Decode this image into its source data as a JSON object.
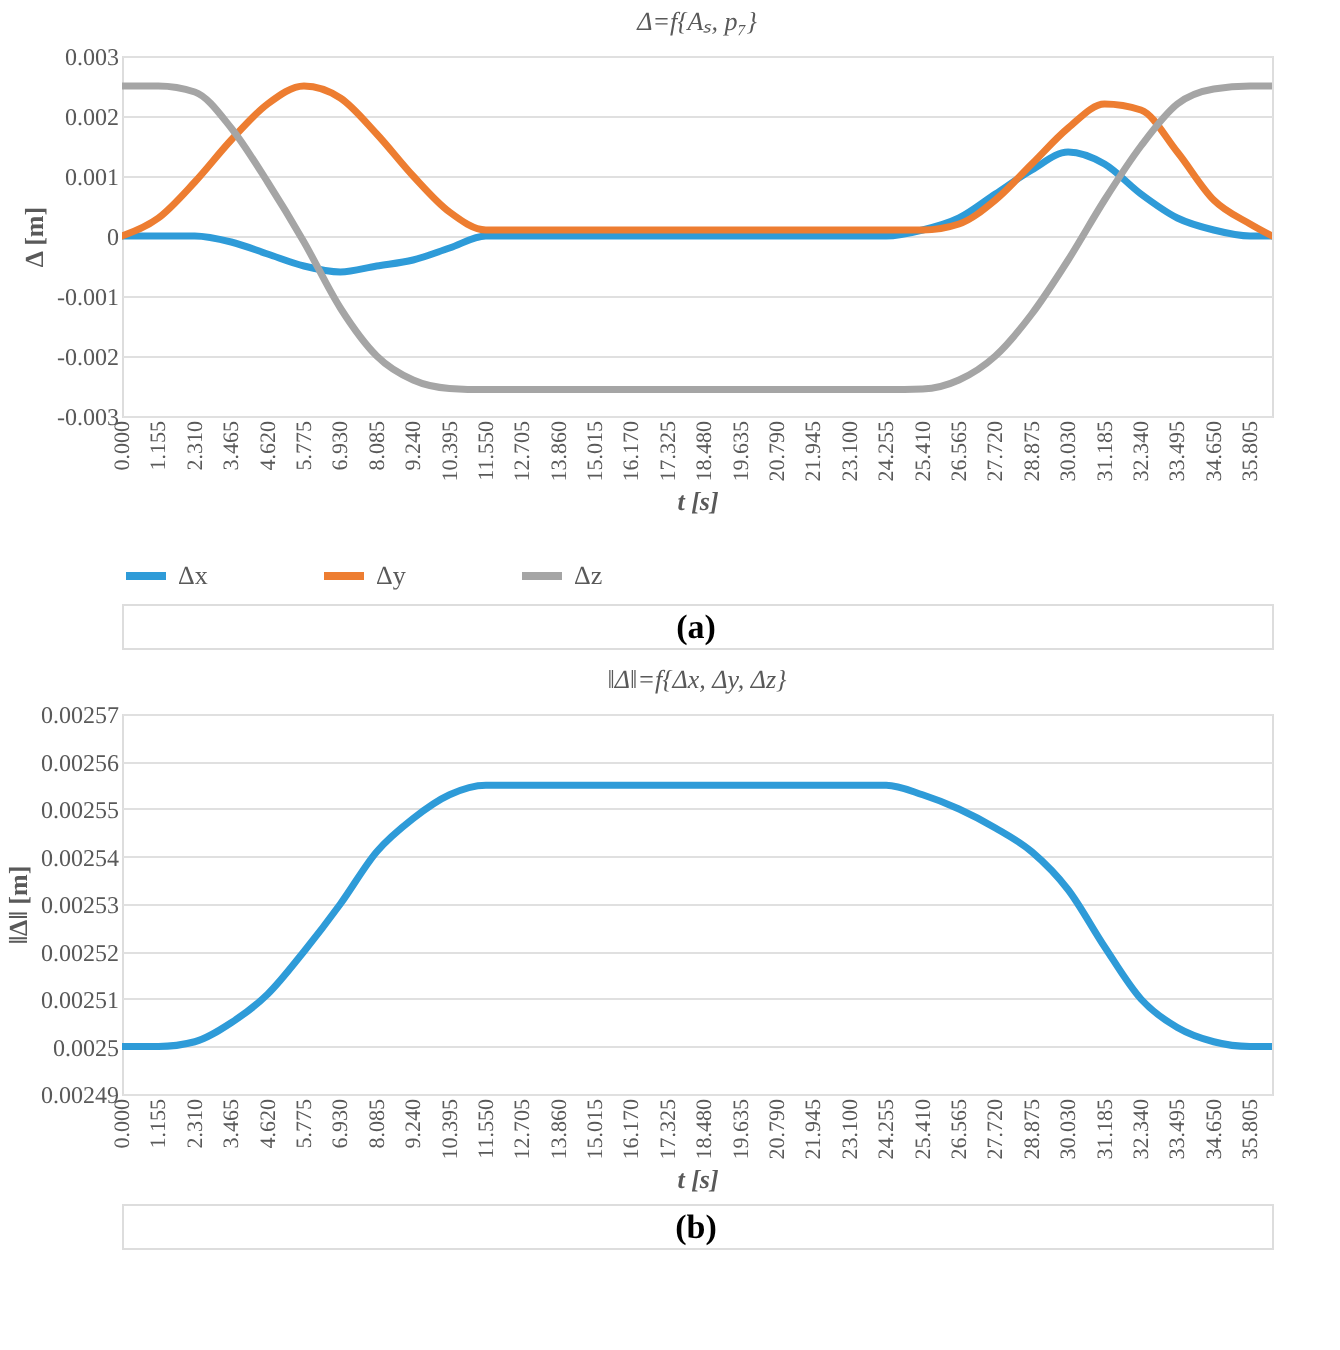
{
  "chart_data": [
    {
      "type": "line",
      "title": "Δ=f{Aₛ, p₇}",
      "xlabel": "t [s]",
      "ylabel": "Δ [m]",
      "grid": "y",
      "legend": "bottom",
      "marker": "none",
      "line_style": "solid",
      "x": [
        0,
        1.155,
        2.31,
        3.465,
        4.62,
        5.775,
        6.93,
        8.085,
        9.24,
        10.395,
        11.55,
        12.705,
        13.86,
        15.015,
        16.17,
        17.325,
        18.48,
        19.635,
        20.79,
        21.945,
        23.1,
        24.255,
        25.41,
        26.565,
        27.72,
        28.875,
        30.03,
        31.185,
        32.34,
        33.495,
        34.65,
        35.805,
        36.5
      ],
      "xlim": [
        0,
        36.5
      ],
      "xticks": [
        {
          "value": 0,
          "label": "0.000"
        },
        {
          "value": 1.155,
          "label": "1.155"
        },
        {
          "value": 2.31,
          "label": "2.310"
        },
        {
          "value": 3.465,
          "label": "3.465"
        },
        {
          "value": 4.62,
          "label": "4.620"
        },
        {
          "value": 5.775,
          "label": "5.775"
        },
        {
          "value": 6.93,
          "label": "6.930"
        },
        {
          "value": 8.085,
          "label": "8.085"
        },
        {
          "value": 9.24,
          "label": "9.240"
        },
        {
          "value": 10.395,
          "label": "10.395"
        },
        {
          "value": 11.55,
          "label": "11.550"
        },
        {
          "value": 12.705,
          "label": "12.705"
        },
        {
          "value": 13.86,
          "label": "13.860"
        },
        {
          "value": 15.015,
          "label": "15.015"
        },
        {
          "value": 16.17,
          "label": "16.170"
        },
        {
          "value": 17.325,
          "label": "17.325"
        },
        {
          "value": 18.48,
          "label": "18.480"
        },
        {
          "value": 19.635,
          "label": "19.635"
        },
        {
          "value": 20.79,
          "label": "20.790"
        },
        {
          "value": 21.945,
          "label": "21.945"
        },
        {
          "value": 23.1,
          "label": "23.100"
        },
        {
          "value": 24.255,
          "label": "24.255"
        },
        {
          "value": 25.41,
          "label": "25.410"
        },
        {
          "value": 26.565,
          "label": "26.565"
        },
        {
          "value": 27.72,
          "label": "27.720"
        },
        {
          "value": 28.875,
          "label": "28.875"
        },
        {
          "value": 30.03,
          "label": "30.030"
        },
        {
          "value": 31.185,
          "label": "31.185"
        },
        {
          "value": 32.34,
          "label": "32.340"
        },
        {
          "value": 33.495,
          "label": "33.495"
        },
        {
          "value": 34.65,
          "label": "34.650"
        },
        {
          "value": 35.805,
          "label": "35.805"
        }
      ],
      "ylim": [
        -0.003,
        0.003
      ],
      "yticks": [
        -0.003,
        -0.002,
        -0.001,
        0,
        0.001,
        0.002,
        0.003
      ],
      "series": [
        {
          "name": "Δx",
          "color": "#2e9bd8",
          "values": [
            0,
            0,
            0,
            -0.0001,
            -0.0003,
            -0.0005,
            -0.0006,
            -0.0005,
            -0.0004,
            -0.0002,
            0,
            0,
            0,
            0,
            0,
            0,
            0,
            0,
            0,
            0,
            0,
            0,
            0.0001,
            0.0003,
            0.0007,
            0.0011,
            0.0014,
            0.0012,
            0.0007,
            0.0003,
            0.0001,
            0,
            0
          ]
        },
        {
          "name": "Δy",
          "color": "#ed7d31",
          "values": [
            0,
            0.0003,
            0.0009,
            0.0016,
            0.0022,
            0.0025,
            0.0023,
            0.0017,
            0.001,
            0.0004,
            0.0001,
            0.0001,
            0.0001,
            0.0001,
            0.0001,
            0.0001,
            0.0001,
            0.0001,
            0.0001,
            0.0001,
            0.0001,
            0.0001,
            0.0001,
            0.0002,
            0.0006,
            0.0012,
            0.0018,
            0.0022,
            0.0021,
            0.0014,
            0.0006,
            0.0002,
            0
          ]
        },
        {
          "name": "Δz",
          "color": "#a5a5a5",
          "values": [
            0.0025,
            0.0025,
            0.0024,
            0.0018,
            0.0009,
            -0.0001,
            -0.0012,
            -0.002,
            -0.0024,
            -0.00254,
            -0.00256,
            -0.00256,
            -0.00256,
            -0.00256,
            -0.00256,
            -0.00256,
            -0.00256,
            -0.00256,
            -0.00256,
            -0.00256,
            -0.00256,
            -0.00256,
            -0.00255,
            -0.0024,
            -0.002,
            -0.0013,
            -0.0004,
            0.0006,
            0.0015,
            0.0022,
            0.00245,
            0.0025,
            0.0025
          ]
        }
      ],
      "annotations": [
        "(a)"
      ]
    },
    {
      "type": "line",
      "title": "‖Δ‖=f{Δx, Δy, Δz}",
      "xlabel": "t [s]",
      "ylabel": "‖Δ‖ [m]",
      "grid": "y",
      "legend": false,
      "marker": "none",
      "line_style": "solid",
      "x": [
        0,
        1.155,
        2.31,
        3.465,
        4.62,
        5.775,
        6.93,
        8.085,
        9.24,
        10.395,
        11.55,
        12.705,
        13.86,
        15.015,
        16.17,
        17.325,
        18.48,
        19.635,
        20.79,
        21.945,
        23.1,
        24.255,
        25.41,
        26.565,
        27.72,
        28.875,
        30.03,
        31.185,
        32.34,
        33.495,
        34.65,
        35.805,
        36.5
      ],
      "xlim": [
        0,
        36.5
      ],
      "xticks": [
        {
          "value": 0,
          "label": "0.000"
        },
        {
          "value": 1.155,
          "label": "1.155"
        },
        {
          "value": 2.31,
          "label": "2.310"
        },
        {
          "value": 3.465,
          "label": "3.465"
        },
        {
          "value": 4.62,
          "label": "4.620"
        },
        {
          "value": 5.775,
          "label": "5.775"
        },
        {
          "value": 6.93,
          "label": "6.930"
        },
        {
          "value": 8.085,
          "label": "8.085"
        },
        {
          "value": 9.24,
          "label": "9.240"
        },
        {
          "value": 10.395,
          "label": "10.395"
        },
        {
          "value": 11.55,
          "label": "11.550"
        },
        {
          "value": 12.705,
          "label": "12.705"
        },
        {
          "value": 13.86,
          "label": "13.860"
        },
        {
          "value": 15.015,
          "label": "15.015"
        },
        {
          "value": 16.17,
          "label": "16.170"
        },
        {
          "value": 17.325,
          "label": "17.325"
        },
        {
          "value": 18.48,
          "label": "18.480"
        },
        {
          "value": 19.635,
          "label": "19.635"
        },
        {
          "value": 20.79,
          "label": "20.790"
        },
        {
          "value": 21.945,
          "label": "21.945"
        },
        {
          "value": 23.1,
          "label": "23.100"
        },
        {
          "value": 24.255,
          "label": "24.255"
        },
        {
          "value": 25.41,
          "label": "25.410"
        },
        {
          "value": 26.565,
          "label": "26.565"
        },
        {
          "value": 27.72,
          "label": "27.720"
        },
        {
          "value": 28.875,
          "label": "28.875"
        },
        {
          "value": 30.03,
          "label": "30.030"
        },
        {
          "value": 31.185,
          "label": "31.185"
        },
        {
          "value": 32.34,
          "label": "32.340"
        },
        {
          "value": 33.495,
          "label": "33.495"
        },
        {
          "value": 34.65,
          "label": "34.650"
        },
        {
          "value": 35.805,
          "label": "35.805"
        }
      ],
      "ylim": [
        0.00249,
        0.00257
      ],
      "yticks": [
        0.00249,
        0.0025,
        0.00251,
        0.00252,
        0.00253,
        0.00254,
        0.00255,
        0.00256,
        0.00257
      ],
      "series": [
        {
          "color": "#2e9bd8",
          "values": [
            0.0025,
            0.0025,
            0.002501,
            0.002505,
            0.002511,
            0.00252,
            0.00253,
            0.002541,
            0.002548,
            0.002553,
            0.002555,
            0.002555,
            0.002555,
            0.002555,
            0.002555,
            0.002555,
            0.002555,
            0.002555,
            0.002555,
            0.002555,
            0.002555,
            0.002555,
            0.002553,
            0.00255,
            0.002546,
            0.002541,
            0.002533,
            0.002521,
            0.00251,
            0.002504,
            0.002501,
            0.0025,
            0.0025
          ]
        }
      ],
      "annotations": [
        "(b)"
      ]
    }
  ]
}
